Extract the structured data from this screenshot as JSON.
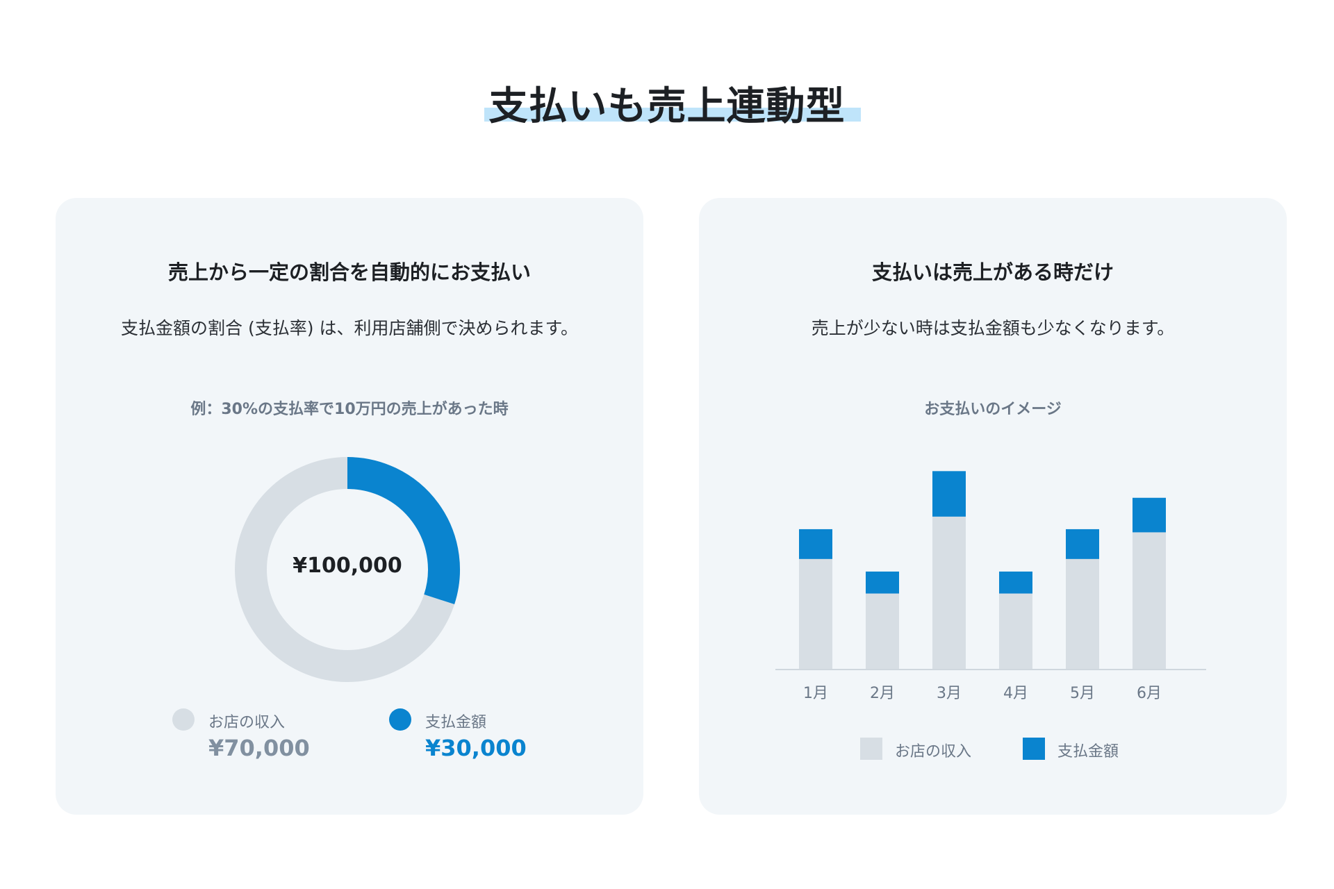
{
  "page": {
    "title": "支払いも売上連動型"
  },
  "colors": {
    "accent": "#0a84cf",
    "income": "#d7dee4",
    "highlight": "#bfe4fa"
  },
  "left_card": {
    "heading": "売上から一定の割合を自動的にお支払い",
    "description": "支払金額の割合 (支払率) は、利用店舗側で決められます。",
    "caption": "例：30%の支払率で10万円の売上があった時",
    "center_total": "¥100,000",
    "legend": [
      {
        "label": "お店の収入",
        "value": "¥70,000"
      },
      {
        "label": "支払金額",
        "value": "¥30,000"
      }
    ]
  },
  "right_card": {
    "heading": "支払いは売上がある時だけ",
    "description": "売上が少ない時は支払金額も少なくなります。",
    "caption": "お支払いのイメージ",
    "legend": [
      {
        "label": "お店の収入"
      },
      {
        "label": "支払金額"
      }
    ]
  },
  "chart_data": [
    {
      "type": "pie",
      "title": "例：30%の支払率で10万円の売上があった時",
      "categories": [
        "お店の収入",
        "支払金額"
      ],
      "values": [
        70000,
        30000
      ],
      "center_label": "¥100,000"
    },
    {
      "type": "bar",
      "stacked": true,
      "title": "お支払いのイメージ",
      "categories": [
        "1月",
        "2月",
        "3月",
        "4月",
        "5月",
        "6月"
      ],
      "series": [
        {
          "name": "お店の収入",
          "values": [
            70,
            48,
            97,
            48,
            70,
            87
          ]
        },
        {
          "name": "支払金額",
          "values": [
            19,
            14,
            29,
            14,
            19,
            22
          ]
        }
      ],
      "ylim": [
        0,
        135
      ],
      "grid": false,
      "legend": "bottom"
    }
  ]
}
